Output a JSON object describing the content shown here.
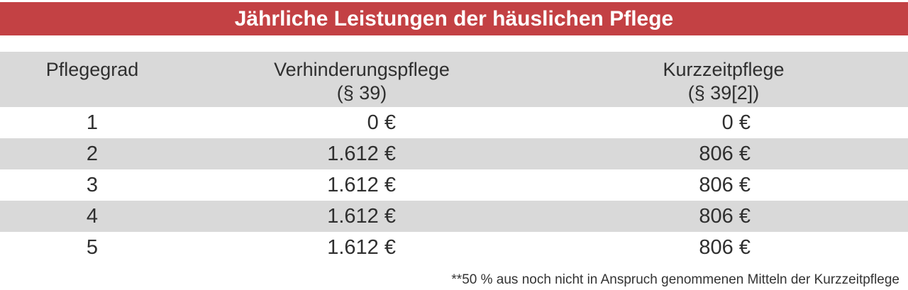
{
  "title_bar": {
    "title": "Jährliche Leistungen der häuslichen Pflege"
  },
  "table": {
    "columns": [
      {
        "label": "Pflegegrad",
        "sub": ""
      },
      {
        "label": "Verhinderungspflege",
        "sub": "(§ 39)"
      },
      {
        "label": "Kurzzeitpflege",
        "sub": "(§ 39[2])"
      }
    ],
    "rows": [
      {
        "pflegegrad": "1",
        "verhinderungspflege": "0 €",
        "kurzzeitpflege": "0 €"
      },
      {
        "pflegegrad": "2",
        "verhinderungspflege": "1.612 €",
        "kurzzeitpflege": "806 €"
      },
      {
        "pflegegrad": "3",
        "verhinderungspflege": "1.612 €",
        "kurzzeitpflege": "806 €"
      },
      {
        "pflegegrad": "4",
        "verhinderungspflege": "1.612 €",
        "kurzzeitpflege": "806 €"
      },
      {
        "pflegegrad": "5",
        "verhinderungspflege": "1.612 €",
        "kurzzeitpflege": "806 €"
      }
    ]
  },
  "footnote": "**50 % aus noch nicht in Anspruch genommenen Mitteln der Kurzzeitpflege",
  "colors": {
    "accent_red": "#c34144",
    "row_gray": "#d9d9d9",
    "text_dark": "#2f2f2f",
    "title_text": "#ffffff"
  },
  "chart_data": {
    "type": "table",
    "title": "Jährliche Leistungen der häuslichen Pflege",
    "columns": [
      "Pflegegrad",
      "Verhinderungspflege (§ 39)",
      "Kurzzeitpflege (§ 39[2])"
    ],
    "rows": [
      [
        "1",
        "0 €",
        "0 €"
      ],
      [
        "2",
        "1.612 €",
        "806 €"
      ],
      [
        "3",
        "1.612 €",
        "806 €"
      ],
      [
        "4",
        "1.612 €",
        "806 €"
      ],
      [
        "5",
        "1.612 €",
        "806 €"
      ]
    ],
    "footnote": "**50 % aus noch nicht in Anspruch genommenen Mitteln der Kurzzeitpflege",
    "layout_hints": {
      "striped_rows": true,
      "value_alignment": "right",
      "header_alignment": "center"
    }
  }
}
